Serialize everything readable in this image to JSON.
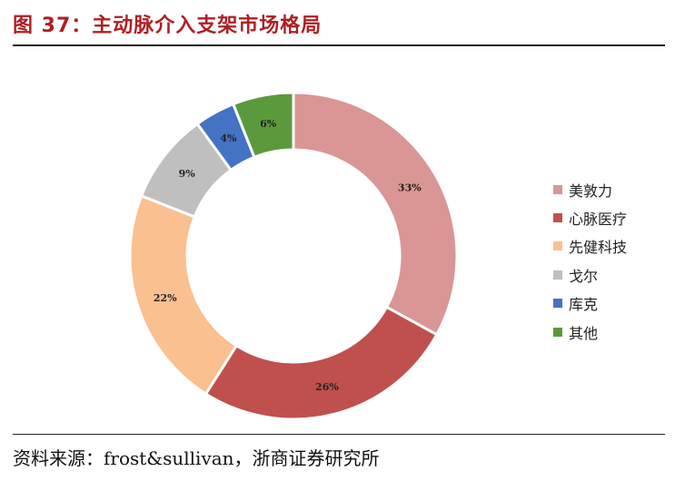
{
  "header": {
    "title": "图 37：主动脉介入支架市场格局"
  },
  "footer": {
    "source": "资料来源：frost&sullivan，浙商证券研究所"
  },
  "chart_data": {
    "type": "pie",
    "donut": true,
    "legend_position": "right",
    "slices": [
      {
        "name": "美敦力",
        "value": 33,
        "label": "33%",
        "color": "#d99694"
      },
      {
        "name": "心脉医疗",
        "value": 26,
        "label": "26%",
        "color": "#c0504d"
      },
      {
        "name": "先健科技",
        "value": 22,
        "label": "22%",
        "color": "#fac090"
      },
      {
        "name": "戈尔",
        "value": 9,
        "label": "9%",
        "color": "#bfbfbf"
      },
      {
        "name": "库克",
        "value": 4,
        "label": "4%",
        "color": "#4472c4"
      },
      {
        "name": "其他",
        "value": 6,
        "label": "6%",
        "color": "#5b9a3c"
      }
    ]
  }
}
